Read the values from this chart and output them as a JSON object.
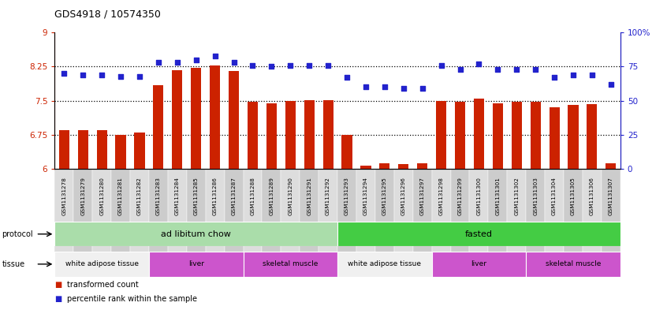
{
  "title": "GDS4918 / 10574350",
  "samples": [
    "GSM1131278",
    "GSM1131279",
    "GSM1131280",
    "GSM1131281",
    "GSM1131282",
    "GSM1131283",
    "GSM1131284",
    "GSM1131285",
    "GSM1131286",
    "GSM1131287",
    "GSM1131288",
    "GSM1131289",
    "GSM1131290",
    "GSM1131291",
    "GSM1131292",
    "GSM1131293",
    "GSM1131294",
    "GSM1131295",
    "GSM1131296",
    "GSM1131297",
    "GSM1131298",
    "GSM1131299",
    "GSM1131300",
    "GSM1131301",
    "GSM1131302",
    "GSM1131303",
    "GSM1131304",
    "GSM1131305",
    "GSM1131306",
    "GSM1131307"
  ],
  "bar_values": [
    6.85,
    6.85,
    6.85,
    6.75,
    6.8,
    7.85,
    8.18,
    8.22,
    8.27,
    8.15,
    7.47,
    7.45,
    7.5,
    7.52,
    7.52,
    6.75,
    6.08,
    6.13,
    6.1,
    6.12,
    7.5,
    7.47,
    7.55,
    7.45,
    7.48,
    7.48,
    7.35,
    7.4,
    7.42,
    6.13
  ],
  "dot_values": [
    70,
    69,
    69,
    68,
    68,
    78,
    78,
    80,
    83,
    78,
    76,
    75,
    76,
    76,
    76,
    67,
    60,
    60,
    59,
    59,
    76,
    73,
    77,
    73,
    73,
    73,
    67,
    69,
    69,
    62
  ],
  "bar_color": "#cc2200",
  "dot_color": "#2222cc",
  "ylim_left": [
    6,
    9
  ],
  "ylim_right": [
    0,
    100
  ],
  "yticks_left": [
    6,
    6.75,
    7.5,
    8.25,
    9
  ],
  "yticks_right": [
    0,
    25,
    50,
    75,
    100
  ],
  "ytick_labels_left": [
    "6",
    "6.75",
    "7.5",
    "8.25",
    "9"
  ],
  "ytick_labels_right": [
    "0",
    "25",
    "50",
    "75",
    "100%"
  ],
  "hlines": [
    6.75,
    7.5,
    8.25
  ],
  "protocols": [
    {
      "label": "ad libitum chow",
      "start": 0,
      "end": 15,
      "color": "#aaddaa"
    },
    {
      "label": "fasted",
      "start": 15,
      "end": 30,
      "color": "#44cc44"
    }
  ],
  "tissues": [
    {
      "label": "white adipose tissue",
      "start": 0,
      "end": 5,
      "color": "#ffffff"
    },
    {
      "label": "liver",
      "start": 5,
      "end": 10,
      "color": "#dd66dd"
    },
    {
      "label": "skeletal muscle",
      "start": 10,
      "end": 15,
      "color": "#dd66dd"
    },
    {
      "label": "white adipose tissue",
      "start": 15,
      "end": 20,
      "color": "#ffffff"
    },
    {
      "label": "liver",
      "start": 20,
      "end": 25,
      "color": "#dd66dd"
    },
    {
      "label": "skeletal muscle",
      "start": 25,
      "end": 30,
      "color": "#dd66dd"
    }
  ],
  "bg_color": "#ffffff",
  "chart_bg": "#ffffff"
}
